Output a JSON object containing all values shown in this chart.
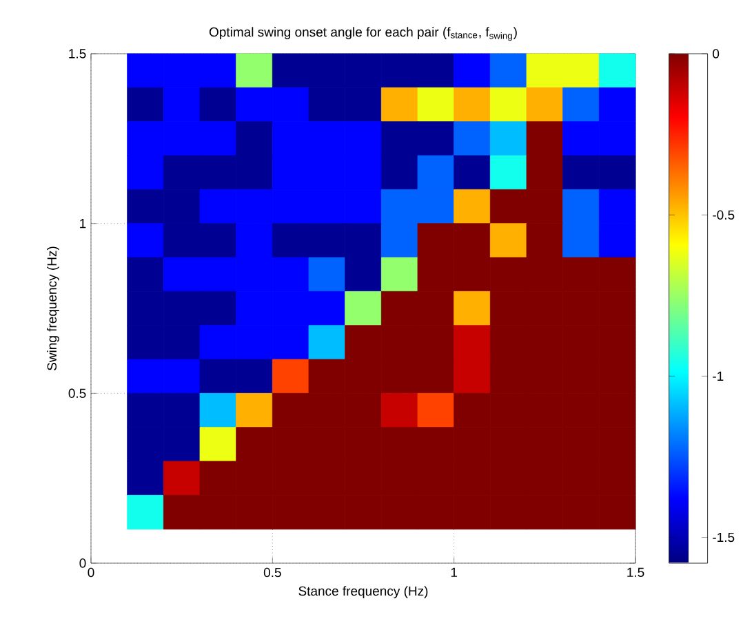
{
  "chart_data": {
    "type": "heatmap",
    "title": "Optimal swing onset angle for each pair (f$_{stance}$, f$_{swing}$)",
    "xlabel": "Stance frequency (Hz)",
    "ylabel": "Swing frequency (Hz)",
    "x": [
      0.15,
      0.25,
      0.35,
      0.45,
      0.55,
      0.65,
      0.75,
      0.85,
      0.95,
      1.05,
      1.15,
      1.25,
      1.35,
      1.45
    ],
    "y": [
      1.45,
      1.35,
      1.25,
      1.15,
      1.05,
      0.95,
      0.85,
      0.75,
      0.65,
      0.55,
      0.45,
      0.35,
      0.25,
      0.15
    ],
    "cells": [
      [
        -1.38,
        -1.38,
        -1.38,
        -0.76,
        -1.55,
        -1.55,
        -1.55,
        -1.55,
        -1.55,
        -1.38,
        -1.23,
        -0.62,
        -0.62,
        -0.96
      ],
      [
        -1.55,
        -1.38,
        -1.55,
        -1.38,
        -1.38,
        -1.55,
        -1.55,
        -0.47,
        -0.62,
        -0.47,
        -0.62,
        -0.47,
        -1.23,
        -1.38
      ],
      [
        -1.38,
        -1.38,
        -1.38,
        -1.55,
        -1.38,
        -1.38,
        -1.38,
        -1.55,
        -1.55,
        -1.23,
        -1.09,
        0,
        -1.38,
        -1.38
      ],
      [
        -1.38,
        -1.55,
        -1.55,
        -1.55,
        -1.38,
        -1.38,
        -1.38,
        -1.55,
        -1.23,
        -1.55,
        -0.96,
        0,
        -1.55,
        -1.55
      ],
      [
        -1.55,
        -1.55,
        -1.38,
        -1.38,
        -1.38,
        -1.38,
        -1.38,
        -1.23,
        -1.23,
        -0.47,
        0,
        0,
        -1.23,
        -1.38
      ],
      [
        -1.38,
        -1.55,
        -1.55,
        -1.38,
        -1.55,
        -1.55,
        -1.55,
        -1.23,
        0,
        0,
        -0.47,
        0,
        -1.23,
        -1.38
      ],
      [
        -1.55,
        -1.38,
        -1.38,
        -1.38,
        -1.38,
        -1.23,
        -1.55,
        -0.76,
        0,
        0,
        0,
        0,
        0,
        0
      ],
      [
        -1.55,
        -1.55,
        -1.55,
        -1.38,
        -1.38,
        -1.38,
        -0.76,
        0,
        0,
        -0.47,
        0,
        0,
        0,
        0
      ],
      [
        -1.55,
        -1.55,
        -1.38,
        -1.38,
        -1.38,
        -1.09,
        0,
        0,
        0,
        -0.11,
        0,
        0,
        0,
        0
      ],
      [
        -1.38,
        -1.38,
        -1.55,
        -1.55,
        -0.3,
        0,
        0,
        0,
        0,
        -0.11,
        0,
        0,
        0,
        0
      ],
      [
        -1.55,
        -1.55,
        -1.09,
        -0.47,
        0,
        0,
        0,
        -0.11,
        -0.3,
        0,
        0,
        0,
        0,
        0
      ],
      [
        -1.55,
        -1.55,
        -0.62,
        0,
        0,
        0,
        0,
        0,
        0,
        0,
        0,
        0,
        0,
        0
      ],
      [
        -1.55,
        -0.11,
        0,
        0,
        0,
        0,
        0,
        0,
        0,
        0,
        0,
        0,
        0,
        0
      ],
      [
        -0.96,
        0,
        0,
        0,
        0,
        0,
        0,
        0,
        0,
        0,
        0,
        0,
        0,
        0
      ]
    ],
    "clim": [
      -1.58,
      0
    ],
    "cticks": [
      0,
      -0.5,
      -1,
      -1.5
    ],
    "xlim": [
      0,
      1.5
    ],
    "ylim": [
      0,
      1.5
    ],
    "xticks": [
      0,
      0.5,
      1,
      1.5
    ],
    "yticks": [
      0,
      0.5,
      1,
      1.5
    ],
    "grid": true
  }
}
